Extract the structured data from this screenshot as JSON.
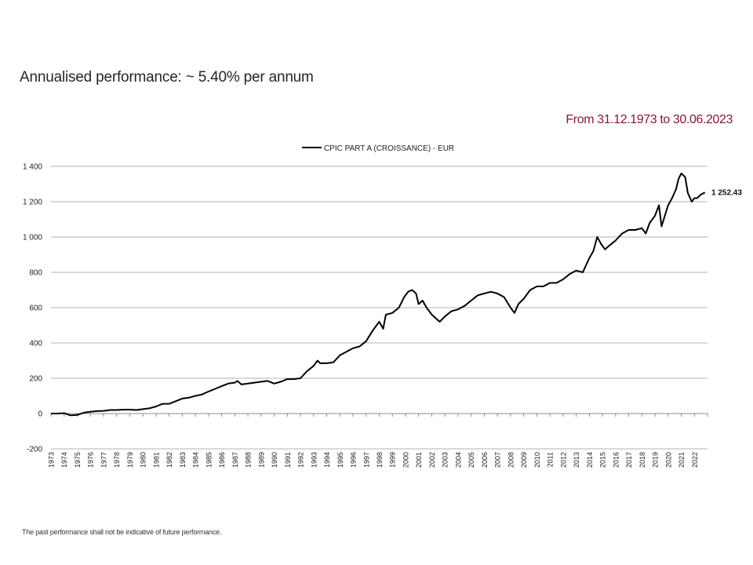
{
  "header": {
    "title": "Annualised performance: ~ 5.40% per annum",
    "period": "From 31.12.1973 to 30.06.2023"
  },
  "footer": {
    "disclaimer": "The past performance shall not be indicative of future performance."
  },
  "colors": {
    "line": "#000000",
    "period_text": "#8a1538",
    "gridline": "#b3b3b3"
  },
  "chart_data": {
    "type": "line",
    "title": "",
    "xlabel": "",
    "ylabel": "",
    "ylim": [
      -200,
      1400
    ],
    "grid": true,
    "legend": "top",
    "y_ticks": [
      -200,
      0,
      200,
      400,
      600,
      800,
      1000,
      1200,
      1400
    ],
    "y_tick_labels": [
      "-200",
      "0",
      "200",
      "400",
      "600",
      "800",
      "1 000",
      "1 200",
      "1 400"
    ],
    "x_tick_labels": [
      "1973",
      "1974",
      "1975",
      "1976",
      "1977",
      "1978",
      "1979",
      "1980",
      "1981",
      "1982",
      "1983",
      "1984",
      "1985",
      "1986",
      "1987",
      "1988",
      "1989",
      "1990",
      "1991",
      "1992",
      "1993",
      "1994",
      "1995",
      "1996",
      "1997",
      "1998",
      "1999",
      "2000",
      "2001",
      "2002",
      "2003",
      "2004",
      "2005",
      "2006",
      "2007",
      "2008",
      "2009",
      "2010",
      "2011",
      "2012",
      "2013",
      "2014",
      "2015",
      "2016",
      "2017",
      "2018",
      "2019",
      "2020",
      "2021",
      "2022"
    ],
    "end_label": "1 252.43",
    "series": [
      {
        "name": "CPIC PART A (CROISSANCE) - EUR",
        "x": [
          1973.0,
          1973.5,
          1974.0,
          1974.5,
          1975.0,
          1975.5,
          1976.0,
          1976.5,
          1977.0,
          1977.5,
          1978.0,
          1978.5,
          1979.0,
          1979.5,
          1980.0,
          1980.5,
          1981.0,
          1981.5,
          1982.0,
          1982.5,
          1983.0,
          1983.5,
          1984.0,
          1984.5,
          1985.0,
          1985.5,
          1986.0,
          1986.5,
          1987.0,
          1987.2,
          1987.5,
          1988.0,
          1988.5,
          1989.0,
          1989.5,
          1990.0,
          1990.5,
          1991.0,
          1991.5,
          1992.0,
          1992.5,
          1993.0,
          1993.3,
          1993.5,
          1994.0,
          1994.5,
          1995.0,
          1995.5,
          1996.0,
          1996.5,
          1997.0,
          1997.5,
          1998.0,
          1998.3,
          1998.5,
          1999.0,
          1999.5,
          1999.9,
          2000.2,
          2000.5,
          2000.8,
          2001.0,
          2001.3,
          2001.6,
          2002.0,
          2002.3,
          2002.6,
          2003.0,
          2003.5,
          2004.0,
          2004.5,
          2005.0,
          2005.5,
          2006.0,
          2006.5,
          2007.0,
          2007.5,
          2008.0,
          2008.3,
          2008.6,
          2009.0,
          2009.5,
          2010.0,
          2010.5,
          2011.0,
          2011.5,
          2012.0,
          2012.5,
          2013.0,
          2013.5,
          2014.0,
          2014.3,
          2014.6,
          2014.9,
          2015.2,
          2015.5,
          2016.0,
          2016.5,
          2017.0,
          2017.5,
          2018.0,
          2018.3,
          2018.6,
          2019.0,
          2019.3,
          2019.5,
          2020.0,
          2020.3,
          2020.6,
          2020.8,
          2021.0,
          2021.3,
          2021.5,
          2021.8,
          2022.0,
          2022.2,
          2022.5,
          2022.8
        ],
        "values": [
          0,
          0,
          2,
          -10,
          -8,
          5,
          10,
          14,
          15,
          20,
          20,
          22,
          22,
          20,
          25,
          30,
          40,
          55,
          55,
          70,
          85,
          90,
          100,
          108,
          125,
          140,
          155,
          170,
          175,
          185,
          165,
          170,
          175,
          180,
          185,
          170,
          180,
          195,
          195,
          200,
          240,
          270,
          300,
          285,
          285,
          290,
          330,
          350,
          370,
          380,
          410,
          470,
          520,
          480,
          560,
          570,
          600,
          660,
          690,
          700,
          680,
          620,
          640,
          600,
          560,
          540,
          520,
          550,
          580,
          590,
          610,
          640,
          670,
          680,
          690,
          680,
          660,
          600,
          570,
          620,
          650,
          700,
          720,
          720,
          740,
          740,
          760,
          790,
          810,
          800,
          880,
          920,
          1000,
          960,
          930,
          950,
          980,
          1020,
          1040,
          1040,
          1050,
          1020,
          1080,
          1120,
          1180,
          1060,
          1180,
          1220,
          1270,
          1330,
          1360,
          1340,
          1250,
          1200,
          1220,
          1220,
          1240,
          1252.43
        ]
      }
    ]
  }
}
